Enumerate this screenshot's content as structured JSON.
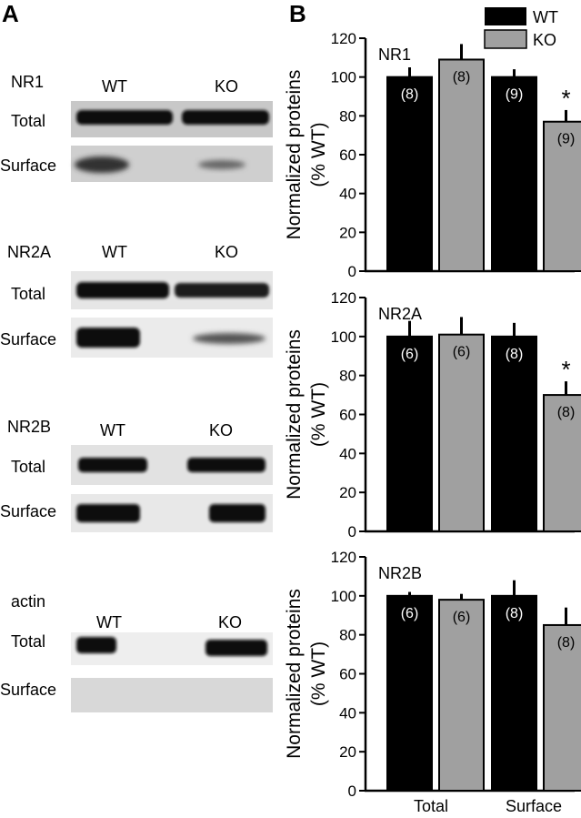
{
  "panel_a": {
    "label": "A",
    "blots": [
      {
        "name": "NR1",
        "lanes": [
          "WT",
          "KO"
        ],
        "rows": [
          "Total",
          "Surface"
        ]
      },
      {
        "name": "NR2A",
        "lanes": [
          "WT",
          "KO"
        ],
        "rows": [
          "Total",
          "Surface"
        ]
      },
      {
        "name": "NR2B",
        "lanes": [
          "WT",
          "KO"
        ],
        "rows": [
          "Total",
          "Surface"
        ]
      },
      {
        "name": "actin",
        "lanes": [
          "WT",
          "KO"
        ],
        "rows": [
          "Total",
          "Surface"
        ]
      }
    ]
  },
  "panel_b": {
    "label": "B",
    "legend": [
      {
        "name": "WT",
        "color": "#000000"
      },
      {
        "name": "KO",
        "color": "#a0a0a0"
      }
    ],
    "colors": {
      "wt": "#000000",
      "ko": "#a0a0a0"
    }
  },
  "chart_data": [
    {
      "type": "bar",
      "title": "NR1",
      "ylabel": "Normalized proteins\n(% WT)",
      "categories": [
        "Total",
        "Surface"
      ],
      "ylim": [
        0,
        120
      ],
      "yticks": [
        0,
        20,
        40,
        60,
        80,
        100,
        120
      ],
      "series": [
        {
          "name": "WT",
          "values": [
            100,
            100
          ],
          "errors": [
            5,
            4
          ],
          "n": [
            "(8)",
            "(9)"
          ]
        },
        {
          "name": "KO",
          "values": [
            109,
            77
          ],
          "errors": [
            8,
            6
          ],
          "n": [
            "(8)",
            "(9)"
          ]
        }
      ],
      "annotations": [
        {
          "category": "Surface",
          "series": "KO",
          "text": "*"
        }
      ],
      "legend": "top-right"
    },
    {
      "type": "bar",
      "title": "NR2A",
      "ylabel": "Normalized proteins\n(% WT)",
      "categories": [
        "Total",
        "Surface"
      ],
      "ylim": [
        0,
        120
      ],
      "yticks": [
        0,
        20,
        40,
        60,
        80,
        100,
        120
      ],
      "series": [
        {
          "name": "WT",
          "values": [
            100,
            100
          ],
          "errors": [
            8,
            7
          ],
          "n": [
            "(6)",
            "(8)"
          ]
        },
        {
          "name": "KO",
          "values": [
            101,
            70
          ],
          "errors": [
            9,
            7
          ],
          "n": [
            "(6)",
            "(8)"
          ]
        }
      ],
      "annotations": [
        {
          "category": "Surface",
          "series": "KO",
          "text": "*"
        }
      ]
    },
    {
      "type": "bar",
      "title": "NR2B",
      "ylabel": "Normalized proteins\n(% WT)",
      "categories": [
        "Total",
        "Surface"
      ],
      "ylim": [
        0,
        120
      ],
      "yticks": [
        0,
        20,
        40,
        60,
        80,
        100,
        120
      ],
      "series": [
        {
          "name": "WT",
          "values": [
            100,
            100
          ],
          "errors": [
            2,
            8
          ],
          "n": [
            "(6)",
            "(8)"
          ]
        },
        {
          "name": "KO",
          "values": [
            98,
            85
          ],
          "errors": [
            3,
            9
          ],
          "n": [
            "(6)",
            "(8)"
          ]
        }
      ],
      "annotations": []
    }
  ]
}
